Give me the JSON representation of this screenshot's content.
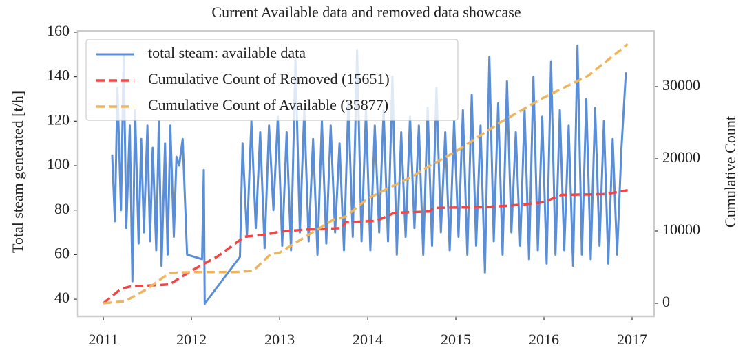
{
  "chart_data": {
    "type": "line",
    "title": "Current Available data and removed data showcase",
    "ylabel": "Total steam generated [t/h]",
    "y2label": "Cumulative Count",
    "xlim": [
      2010.71,
      2017.25
    ],
    "xticks": [
      2011,
      2012,
      2013,
      2014,
      2015,
      2016,
      2017
    ],
    "ylim": [
      32.3,
      160.6
    ],
    "yticks": [
      40,
      60,
      80,
      100,
      120,
      140,
      160
    ],
    "y2lim": [
      -1810,
      37714
    ],
    "y2ticks": [
      0,
      10000,
      20000,
      30000
    ],
    "legend": "upper left",
    "series": [
      {
        "name": "total steam: available data",
        "color": "#5a8ed6",
        "dash": false,
        "axis": "y",
        "x": [
          2011.1,
          2011.13,
          2011.16,
          2011.2,
          2011.23,
          2011.26,
          2011.3,
          2011.33,
          2011.36,
          2011.4,
          2011.43,
          2011.46,
          2011.5,
          2011.53,
          2011.56,
          2011.6,
          2011.63,
          2011.66,
          2011.7,
          2011.73,
          2011.76,
          2011.8,
          2011.83,
          2011.86,
          2011.9,
          2011.95,
          2012.12,
          2012.14,
          2012.15,
          2012.55,
          2012.58,
          2012.63,
          2012.68,
          2012.73,
          2012.78,
          2012.83,
          2012.88,
          2012.93,
          2012.98,
          2013.03,
          2013.08,
          2013.13,
          2013.18,
          2013.23,
          2013.28,
          2013.33,
          2013.38,
          2013.43,
          2013.48,
          2013.53,
          2013.58,
          2013.63,
          2013.68,
          2013.73,
          2013.78,
          2013.83,
          2013.88,
          2013.93,
          2013.98,
          2014.03,
          2014.08,
          2014.13,
          2014.18,
          2014.23,
          2014.28,
          2014.33,
          2014.38,
          2014.43,
          2014.48,
          2014.53,
          2014.58,
          2014.63,
          2014.68,
          2014.73,
          2014.78,
          2014.83,
          2014.88,
          2014.93,
          2014.98,
          2015.03,
          2015.08,
          2015.13,
          2015.18,
          2015.23,
          2015.28,
          2015.33,
          2015.38,
          2015.43,
          2015.48,
          2015.53,
          2015.58,
          2015.63,
          2015.68,
          2015.73,
          2015.78,
          2015.83,
          2015.88,
          2015.93,
          2015.98,
          2016.03,
          2016.08,
          2016.13,
          2016.18,
          2016.23,
          2016.28,
          2016.33,
          2016.38,
          2016.43,
          2016.48,
          2016.53,
          2016.58,
          2016.63,
          2016.68,
          2016.73,
          2016.78,
          2016.83,
          2016.88,
          2016.93
        ],
        "values": [
          105,
          75,
          135,
          80,
          150,
          72,
          118,
          48,
          125,
          65,
          112,
          70,
          118,
          66,
          108,
          62,
          120,
          55,
          110,
          60,
          118,
          68,
          104,
          100,
          112,
          60,
          58,
          98,
          38,
          59,
          110,
          68,
          120,
          72,
          115,
          63,
          118,
          80,
          122,
          64,
          115,
          62,
          148,
          70,
          125,
          66,
          112,
          60,
          120,
          65,
          118,
          70,
          110,
          62,
          128,
          68,
          152,
          66,
          125,
          62,
          118,
          70,
          125,
          66,
          140,
          60,
          115,
          68,
          122,
          72,
          118,
          60,
          126,
          64,
          135,
          70,
          115,
          62,
          120,
          68,
          125,
          60,
          132,
          64,
          118,
          52,
          149,
          66,
          128,
          60,
          138,
          70,
          115,
          64,
          125,
          58,
          140,
          62,
          122,
          56,
          147,
          60,
          125,
          62,
          118,
          55,
          154,
          60,
          130,
          58,
          126,
          64,
          120,
          56,
          112,
          60,
          108,
          142
        ]
      },
      {
        "name": "Cumulative Count of Removed (15651)",
        "color": "#f44444",
        "dash": true,
        "axis": "y2",
        "x": [
          2011.0,
          2011.2,
          2011.3,
          2011.75,
          2012.0,
          2012.3,
          2012.6,
          2012.85,
          2013.0,
          2013.3,
          2013.7,
          2013.75,
          2014.1,
          2014.3,
          2014.7,
          2014.75,
          2015.3,
          2015.6,
          2015.8,
          2016.0,
          2016.2,
          2016.7,
          2016.95
        ],
        "values": [
          0,
          2000,
          2300,
          2600,
          4500,
          6500,
          9200,
          9500,
          9900,
          10200,
          10400,
          11200,
          11400,
          12500,
          12700,
          13200,
          13300,
          13500,
          13700,
          14000,
          15000,
          15100,
          15651
        ]
      },
      {
        "name": "Cumulative Count of Available (35877)",
        "color": "#efb55e",
        "dash": true,
        "axis": "y2",
        "x": [
          2011.0,
          2011.25,
          2011.5,
          2011.75,
          2012.0,
          2012.5,
          2012.7,
          2012.9,
          2013.0,
          2013.6,
          2013.75,
          2014.0,
          2014.5,
          2014.7,
          2015.0,
          2015.5,
          2016.0,
          2016.5,
          2016.95
        ],
        "values": [
          0,
          300,
          2000,
          4200,
          4300,
          4300,
          4500,
          6800,
          7000,
          11500,
          12000,
          14500,
          17500,
          19000,
          21000,
          25000,
          28500,
          31500,
          35877
        ]
      }
    ]
  }
}
